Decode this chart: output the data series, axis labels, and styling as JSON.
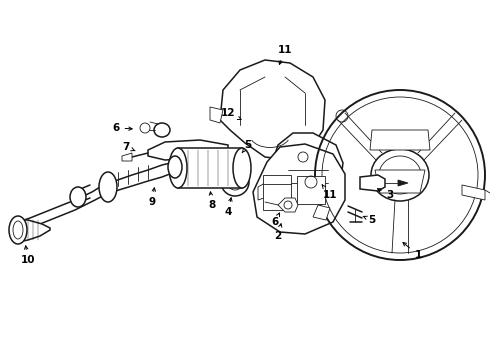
{
  "background_color": "#ffffff",
  "line_color": "#1a1a1a",
  "figsize": [
    4.9,
    3.6
  ],
  "dpi": 100,
  "label_fontsize": 7.5,
  "lw_main": 1.1,
  "lw_thin": 0.6
}
